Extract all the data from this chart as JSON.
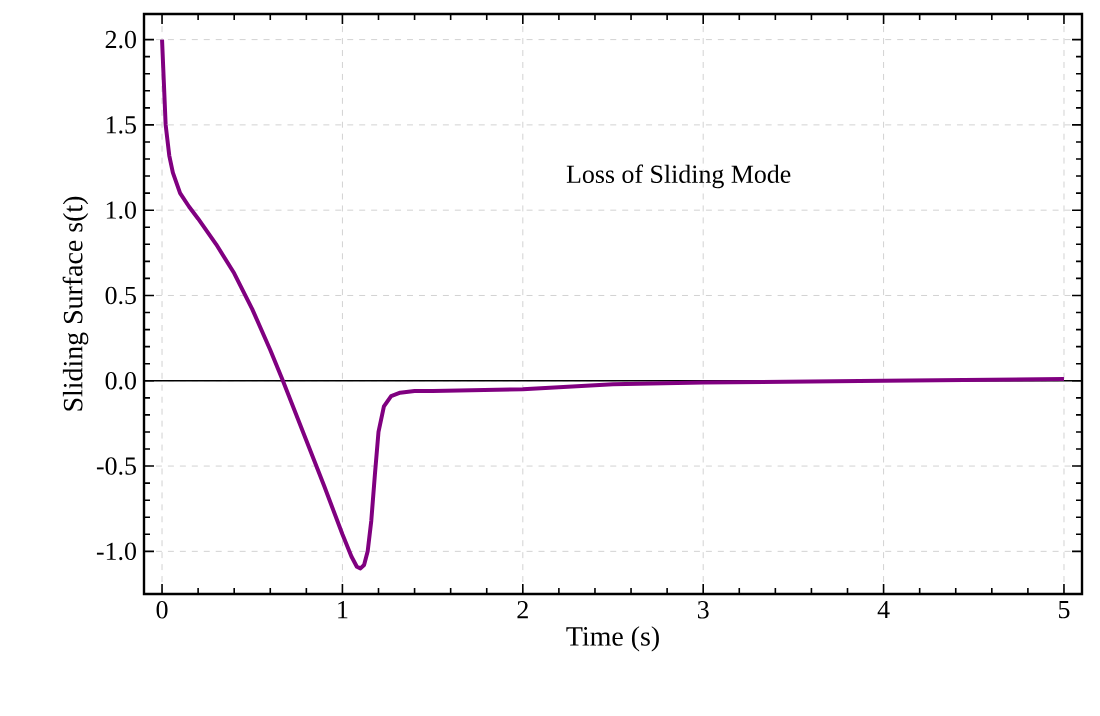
{
  "chart_data": {
    "type": "line",
    "xlabel": "Time (s)",
    "ylabel": "Sliding Surface s(t)",
    "annotations": [
      "Loss of Sliding Mode"
    ],
    "xlim": [
      -0.1,
      5.1
    ],
    "ylim": [
      -1.25,
      2.15
    ],
    "xticks": [
      0,
      1,
      2,
      3,
      4,
      5
    ],
    "yticks": [
      {
        "value": -1.0,
        "label": "-1.0"
      },
      {
        "value": -0.5,
        "label": "-0.5"
      },
      {
        "value": 0.0,
        "label": "0.0"
      },
      {
        "value": 0.5,
        "label": "0.5"
      },
      {
        "value": 1.0,
        "label": "1.0"
      },
      {
        "value": 1.5,
        "label": "1.5"
      },
      {
        "value": 2.0,
        "label": "2.0"
      }
    ],
    "grid": true,
    "marker": "none",
    "line_style": "solid",
    "ref_lines": [
      {
        "axis": "y",
        "value": 0,
        "color": "#000000"
      }
    ],
    "series": [
      {
        "color": "#800080",
        "x": [
          0,
          0.01,
          0.02,
          0.04,
          0.06,
          0.1,
          0.15,
          0.2,
          0.3,
          0.4,
          0.5,
          0.6,
          0.67,
          0.8,
          0.9,
          1.0,
          1.05,
          1.08,
          1.1,
          1.12,
          1.14,
          1.16,
          1.18,
          1.2,
          1.23,
          1.27,
          1.32,
          1.4,
          1.5,
          2.0,
          2.5,
          3.0,
          4.0,
          5.0
        ],
        "values": [
          2.0,
          1.75,
          1.5,
          1.32,
          1.22,
          1.1,
          1.02,
          0.95,
          0.8,
          0.63,
          0.42,
          0.18,
          0.0,
          -0.35,
          -0.62,
          -0.9,
          -1.03,
          -1.09,
          -1.1,
          -1.08,
          -1.0,
          -0.82,
          -0.55,
          -0.3,
          -0.15,
          -0.09,
          -0.07,
          -0.06,
          -0.06,
          -0.05,
          -0.02,
          -0.01,
          0.0,
          0.01
        ]
      }
    ]
  }
}
